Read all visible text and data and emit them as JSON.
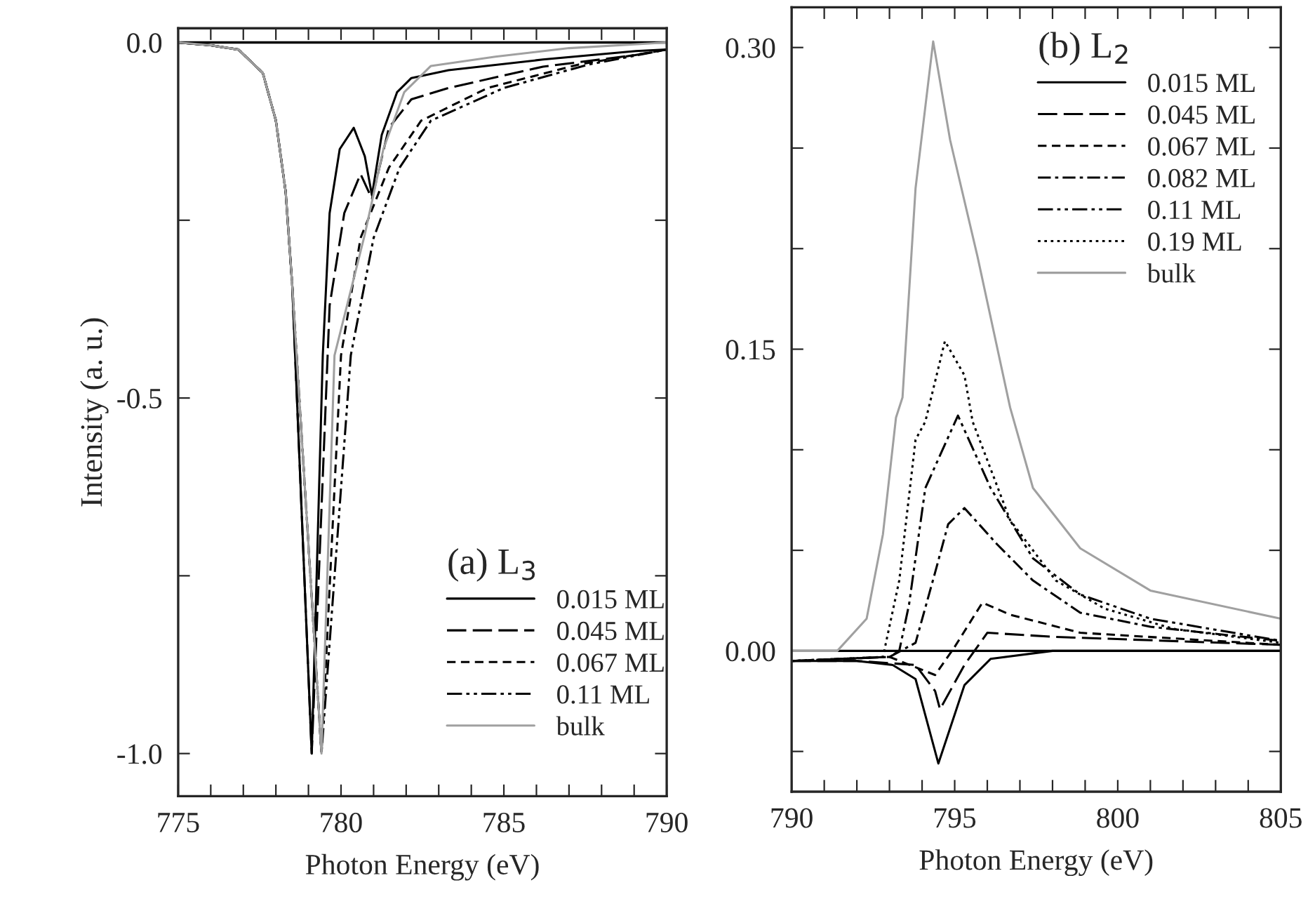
{
  "chart_data": [
    {
      "type": "line",
      "xlabel": "Photon Energy (eV)",
      "ylabel": "Intensity (a. u.)",
      "legend_title": "(a) L$_{3}$",
      "legend": "lower right",
      "xlim": [
        775,
        790
      ],
      "ylim": [
        -1.06,
        0.02
      ],
      "xticks": [
        775,
        {
          "value": 776,
          "label": null
        },
        {
          "value": 777,
          "label": null
        },
        {
          "value": 778,
          "label": null
        },
        {
          "value": 779,
          "label": null
        },
        780,
        {
          "value": 781,
          "label": null
        },
        {
          "value": 782,
          "label": null
        },
        {
          "value": 783,
          "label": null
        },
        {
          "value": 784,
          "label": null
        },
        785,
        {
          "value": 786,
          "label": null
        },
        {
          "value": 787,
          "label": null
        },
        {
          "value": 788,
          "label": null
        },
        {
          "value": 789,
          "label": null
        },
        790
      ],
      "yticks": [
        {
          "value": -1.0,
          "label": "-1.0"
        },
        {
          "value": -0.75,
          "label": null
        },
        {
          "value": -0.5,
          "label": "-0.5"
        },
        {
          "value": -0.25,
          "label": null
        },
        {
          "value": 0.0,
          "label": "0.0"
        }
      ],
      "ref_lines": [
        {
          "axis": "y",
          "value": 0,
          "color": "#000000"
        }
      ],
      "series": [
        {
          "name": "0.015 ML",
          "color": "#000000",
          "line_style": "solid",
          "x": [
            775,
            776,
            776.85,
            777.6,
            778.0,
            778.3,
            778.5,
            779.1,
            779.44,
            779.65,
            779.96,
            780.39,
            780.73,
            780.95,
            781.25,
            781.72,
            782.16,
            783.3,
            786.2,
            789.05,
            790
          ],
          "values": [
            0,
            -0.004,
            -0.01,
            -0.043,
            -0.11,
            -0.21,
            -0.34,
            -1.0,
            -0.44,
            -0.24,
            -0.15,
            -0.12,
            -0.16,
            -0.215,
            -0.13,
            -0.07,
            -0.05,
            -0.039,
            -0.024,
            -0.012,
            -0.01
          ]
        },
        {
          "name": "0.045 ML",
          "color": "#000000",
          "line_style": "longdash",
          "x": [
            775,
            776,
            776.85,
            777.6,
            778.0,
            778.3,
            778.5,
            779.1,
            779.65,
            780.1,
            780.6,
            780.95,
            781.47,
            782.16,
            783.3,
            786.2,
            789.0,
            790
          ],
          "values": [
            0,
            -0.004,
            -0.01,
            -0.043,
            -0.11,
            -0.21,
            -0.34,
            -1.0,
            -0.37,
            -0.24,
            -0.185,
            -0.22,
            -0.12,
            -0.08,
            -0.064,
            -0.034,
            -0.018,
            -0.01
          ]
        },
        {
          "name": "0.067 ML",
          "color": "#000000",
          "line_style": "dashed",
          "x": [
            775,
            776,
            776.85,
            777.6,
            778.0,
            778.3,
            778.5,
            779.4,
            780.0,
            780.6,
            781.47,
            782.46,
            784.5,
            787.3,
            790
          ],
          "values": [
            0,
            -0.004,
            -0.01,
            -0.043,
            -0.11,
            -0.21,
            -0.34,
            -1.0,
            -0.44,
            -0.275,
            -0.176,
            -0.11,
            -0.064,
            -0.031,
            -0.01
          ]
        },
        {
          "name": "0.11 ML",
          "color": "#000000",
          "line_style": "dashdotdot",
          "x": [
            775,
            776,
            776.85,
            777.6,
            778.0,
            778.3,
            778.5,
            779.4,
            780.3,
            781.0,
            781.8,
            782.76,
            785.0,
            787.6,
            790
          ],
          "values": [
            0,
            -0.004,
            -0.01,
            -0.043,
            -0.11,
            -0.21,
            -0.34,
            -1.0,
            -0.44,
            -0.275,
            -0.176,
            -0.11,
            -0.064,
            -0.031,
            -0.01
          ]
        },
        {
          "name": "bulk",
          "color": "#a0a0a0",
          "line_style": "solid",
          "x": [
            775,
            776,
            776.85,
            777.6,
            778.0,
            778.3,
            778.5,
            779.4,
            779.8,
            780.73,
            781.3,
            781.94,
            782.76,
            784.74,
            787.0,
            790
          ],
          "values": [
            0,
            -0.004,
            -0.01,
            -0.043,
            -0.11,
            -0.21,
            -0.34,
            -1.0,
            -0.44,
            -0.27,
            -0.15,
            -0.07,
            -0.033,
            -0.02,
            -0.008,
            0
          ]
        }
      ]
    },
    {
      "type": "line",
      "xlabel": "Photon Energy (eV)",
      "legend_title": "(b) L$_{2}$",
      "legend": "top right",
      "xlim": [
        790,
        805
      ],
      "ylim": [
        -0.07,
        0.32
      ],
      "xticks": [
        790,
        {
          "value": 791,
          "label": null
        },
        {
          "value": 792,
          "label": null
        },
        {
          "value": 793,
          "label": null
        },
        {
          "value": 794,
          "label": null
        },
        795,
        {
          "value": 796,
          "label": null
        },
        {
          "value": 797,
          "label": null
        },
        {
          "value": 798,
          "label": null
        },
        {
          "value": 799,
          "label": null
        },
        800,
        {
          "value": 801,
          "label": null
        },
        {
          "value": 802,
          "label": null
        },
        {
          "value": 803,
          "label": null
        },
        {
          "value": 804,
          "label": null
        },
        805
      ],
      "yticks": [
        {
          "value": -0.05,
          "label": null
        },
        {
          "value": 0.0,
          "label": "0.00"
        },
        {
          "value": 0.05,
          "label": null
        },
        {
          "value": 0.1,
          "label": null
        },
        {
          "value": 0.15,
          "label": "0.15"
        },
        {
          "value": 0.2,
          "label": null
        },
        {
          "value": 0.25,
          "label": null
        },
        {
          "value": 0.3,
          "label": "0.30"
        }
      ],
      "ref_lines": [
        {
          "axis": "y",
          "value": 0,
          "color": "#000000"
        }
      ],
      "series": [
        {
          "name": "0.015 ML",
          "color": "#000000",
          "line_style": "solid",
          "x": [
            790,
            792,
            793.1,
            793.8,
            794.5,
            795.3,
            796.1,
            798,
            805
          ],
          "values": [
            -0.005,
            -0.005,
            -0.007,
            -0.014,
            -0.056,
            -0.017,
            -0.004,
            0.0,
            0.0
          ]
        },
        {
          "name": "0.045 ML",
          "color": "#000000",
          "line_style": "longdash",
          "x": [
            790,
            792,
            793.8,
            794.4,
            794.55,
            795.3,
            796.0,
            798,
            805
          ],
          "values": [
            -0.005,
            -0.005,
            -0.007,
            -0.02,
            -0.029,
            -0.007,
            0.009,
            0.007,
            0.003
          ]
        },
        {
          "name": "0.067 ML",
          "color": "#000000",
          "line_style": "dashed",
          "x": [
            790,
            793,
            794.4,
            795.0,
            795.85,
            796.7,
            798.85,
            805
          ],
          "values": [
            -0.005,
            -0.003,
            -0.012,
            0.002,
            0.024,
            0.018,
            0.009,
            0.003
          ]
        },
        {
          "name": "0.082 ML",
          "color": "#000000",
          "line_style": "dashdot",
          "x": [
            790,
            793,
            793.8,
            794.4,
            794.8,
            795.3,
            796.3,
            797.4,
            798.85,
            801,
            805
          ],
          "values": [
            -0.005,
            -0.003,
            0.004,
            0.039,
            0.063,
            0.071,
            0.053,
            0.035,
            0.019,
            0.012,
            0.005
          ]
        },
        {
          "name": "0.11 ML",
          "color": "#000000",
          "line_style": "dashdotdot",
          "x": [
            790,
            793,
            793.3,
            793.6,
            794.1,
            795.1,
            796.1,
            797.4,
            798.85,
            801,
            805
          ],
          "values": [
            -0.005,
            -0.003,
            0.0,
            0.023,
            0.081,
            0.117,
            0.081,
            0.046,
            0.028,
            0.016,
            0.005
          ]
        },
        {
          "name": "0.19 ML",
          "color": "#000000",
          "line_style": "dotted",
          "x": [
            790,
            792.8,
            793.3,
            793.8,
            794.1,
            794.7,
            795.3,
            795.55,
            796.7,
            798.1,
            799.6,
            801.7,
            805
          ],
          "values": [
            -0.005,
            -0.003,
            0.035,
            0.105,
            0.114,
            0.154,
            0.137,
            0.114,
            0.065,
            0.035,
            0.021,
            0.011,
            0.004
          ]
        },
        {
          "name": "bulk",
          "color": "#a0a0a0",
          "line_style": "solid",
          "x": [
            790,
            791.4,
            792.3,
            792.8,
            793.2,
            793.4,
            793.8,
            794.34,
            794.86,
            795.7,
            796.7,
            797.4,
            798.85,
            801.0,
            805
          ],
          "values": [
            0,
            0,
            0.016,
            0.058,
            0.116,
            0.126,
            0.23,
            0.303,
            0.254,
            0.196,
            0.121,
            0.081,
            0.051,
            0.03,
            0.016
          ]
        }
      ]
    }
  ]
}
